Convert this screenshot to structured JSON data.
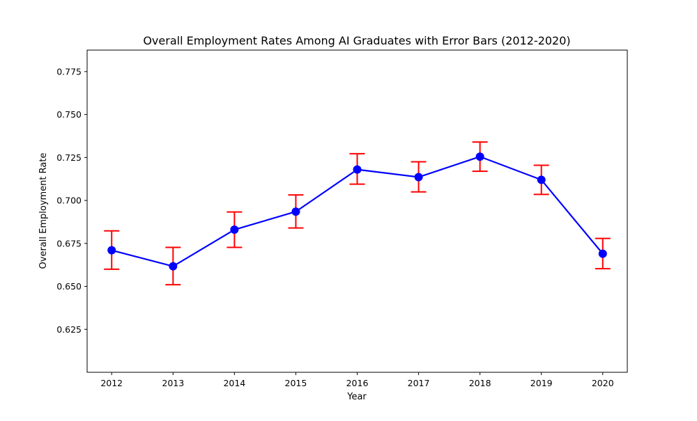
{
  "chart_data": {
    "type": "line",
    "title": "Overall Employment Rates Among AI Graduates with Error Bars (2012-2020)",
    "xlabel": "Year",
    "ylabel": "Overall Employment Rate",
    "x": [
      2012,
      2013,
      2014,
      2015,
      2016,
      2017,
      2018,
      2019,
      2020
    ],
    "series": [
      {
        "values": [
          0.671,
          0.6617,
          0.683,
          0.6935,
          0.718,
          0.7136,
          0.7255,
          0.712,
          0.669
        ],
        "error_low": [
          0.66,
          0.651,
          0.6727,
          0.684,
          0.7095,
          0.705,
          0.717,
          0.7035,
          0.6603
        ],
        "error_high": [
          0.6823,
          0.6727,
          0.6933,
          0.7032,
          0.7272,
          0.7225,
          0.734,
          0.7205,
          0.6779
        ],
        "line_color": "#0000ff",
        "marker_color": "#0000ff",
        "error_color": "#ff0000"
      }
    ],
    "ylim": [
      0.6,
      0.7875
    ],
    "yticks": [
      "0.625",
      "0.650",
      "0.675",
      "0.700",
      "0.725",
      "0.750",
      "0.775"
    ],
    "xticks": [
      "2012",
      "2013",
      "2014",
      "2015",
      "2016",
      "2017",
      "2018",
      "2019",
      "2020"
    ],
    "grid": false
  }
}
